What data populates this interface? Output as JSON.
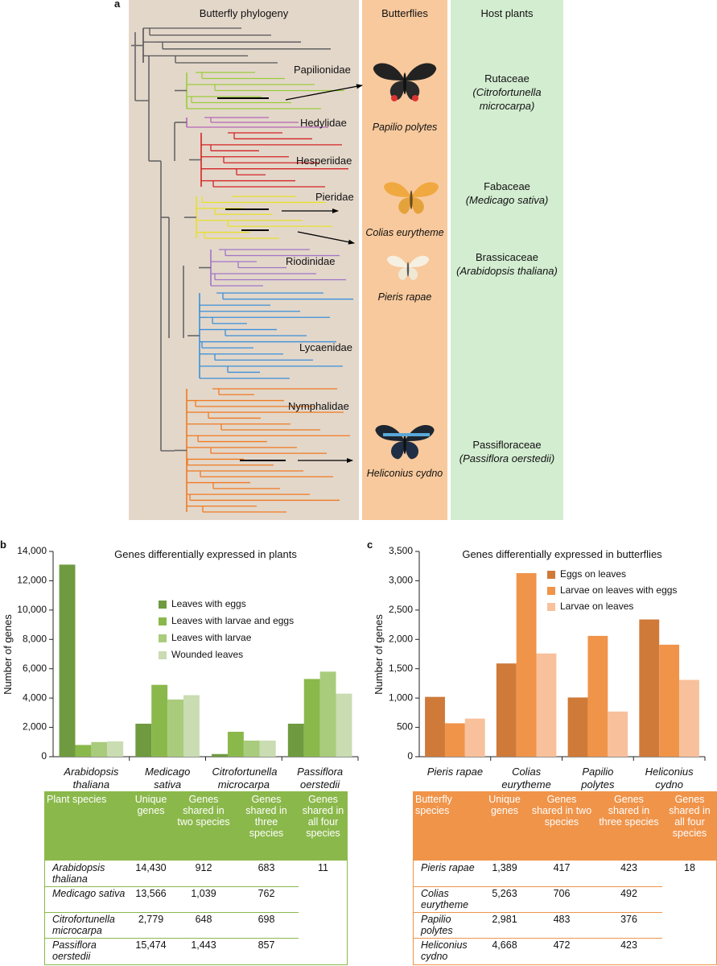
{
  "panel_a": {
    "letter": "a",
    "headers": [
      "Butterfly phylogeny",
      "Butterflies",
      "Host plants"
    ],
    "families": [
      "Papilionidae",
      "Hedylidae",
      "Hesperiidae",
      "Pieridae",
      "Riodinidae",
      "Lycaenidae",
      "Nymphalidae"
    ],
    "butterflies": [
      "Papilio polytes",
      "Colias eurytheme",
      "Pieris rapae",
      "Heliconius cydno"
    ],
    "host_plants": [
      {
        "family": "Rutaceae",
        "species_lines": [
          "(Citrofortunella",
          "microcarpa)"
        ]
      },
      {
        "family": "Fabaceae",
        "species_lines": [
          "(Medicago sativa)"
        ]
      },
      {
        "family": "Brassicaceae",
        "species_lines": [
          "(Arabidopsis thaliana)"
        ]
      },
      {
        "family": "Passifloraceae",
        "species_lines": [
          "(Passiflora oerstedii)"
        ]
      }
    ]
  },
  "chart_data": [
    {
      "type": "bar",
      "letter": "b",
      "title": "Genes differentially expressed in plants",
      "y_label": "Number of genes",
      "categories": [
        "Arabidopsis thaliana",
        "Medicago sativa",
        "Citrofortunella microcarpa",
        "Passiflora oerstedii"
      ],
      "series": [
        {
          "name": "Leaves with eggs",
          "color": "#6f9a3f",
          "values": [
            13100,
            2250,
            180,
            2250
          ]
        },
        {
          "name": "Leaves with larvae and eggs",
          "color": "#8bb84b",
          "values": [
            800,
            4900,
            1700,
            5300
          ]
        },
        {
          "name": "Leaves with larvae",
          "color": "#a9cc7c",
          "values": [
            1000,
            3900,
            1100,
            5800
          ]
        },
        {
          "name": "Wounded leaves",
          "color": "#cadcb2",
          "values": [
            1050,
            4200,
            1100,
            4300
          ]
        }
      ],
      "ylim": [
        0,
        14000
      ],
      "yticks": [
        0,
        {
          "value": 2000,
          "label": "2,000"
        },
        {
          "value": 4000,
          "label": "4,000"
        },
        {
          "value": 6000,
          "label": "6,000"
        },
        {
          "value": 8000,
          "label": "8,000"
        },
        {
          "value": 10000,
          "label": "10,000"
        },
        {
          "value": 12000,
          "label": "12,000"
        },
        {
          "value": 14000,
          "label": "14,000"
        }
      ]
    },
    {
      "type": "bar",
      "letter": "c",
      "title": "Genes differentially expressed in butterflies",
      "y_label": "Number of genes",
      "categories": [
        "Pieris rapae",
        "Colias eurytheme",
        "Papilio polytes",
        "Heliconius cydno"
      ],
      "series": [
        {
          "name": "Eggs on leaves",
          "color": "#cf7a39",
          "values": [
            1020,
            1590,
            1010,
            2340
          ]
        },
        {
          "name": "Larvae on leaves with eggs",
          "color": "#f0944a",
          "values": [
            570,
            3130,
            2060,
            1910
          ]
        },
        {
          "name": "Larvae on leaves",
          "color": "#f8c19c",
          "values": [
            650,
            1760,
            770,
            1310
          ]
        }
      ],
      "ylim": [
        0,
        3500
      ],
      "yticks": [
        0,
        500,
        {
          "value": 1000,
          "label": "1,000"
        },
        {
          "value": 1500,
          "label": "1,500"
        },
        {
          "value": 2000,
          "label": "2,000"
        },
        {
          "value": 2500,
          "label": "2,500"
        },
        {
          "value": 3000,
          "label": "3,000"
        },
        {
          "value": 3500,
          "label": "3,500"
        }
      ]
    }
  ],
  "tables": [
    {
      "color": "#8bb84b",
      "header": [
        "Plant species",
        "Unique genes",
        "Genes shared in two species",
        "Genes shared in three species",
        "Genes shared in all four species"
      ],
      "rows": [
        [
          "Arabidopsis thaliana",
          "14,430",
          "912",
          "683",
          "11"
        ],
        [
          "Medicago sativa",
          "13,566",
          "1,039",
          "762"
        ],
        [
          "Citrofortunella microcarpa",
          "2,779",
          "648",
          "698"
        ],
        [
          "Passiflora oerstedii",
          "15,474",
          "1,443",
          "857"
        ]
      ]
    },
    {
      "color": "#f0944a",
      "header": [
        "Butterfly species",
        "Unique genes",
        "Genes shared in two species",
        "Genes shared in three species",
        "Genes shared in all four species"
      ],
      "rows": [
        [
          "Pieris rapae",
          "1,389",
          "417",
          "423",
          "18"
        ],
        [
          "Colias eurytheme",
          "5,263",
          "706",
          "492"
        ],
        [
          "Papilio polytes",
          "2,981",
          "483",
          "376"
        ],
        [
          "Heliconius cydno",
          "4,668",
          "472",
          "423"
        ]
      ]
    }
  ]
}
